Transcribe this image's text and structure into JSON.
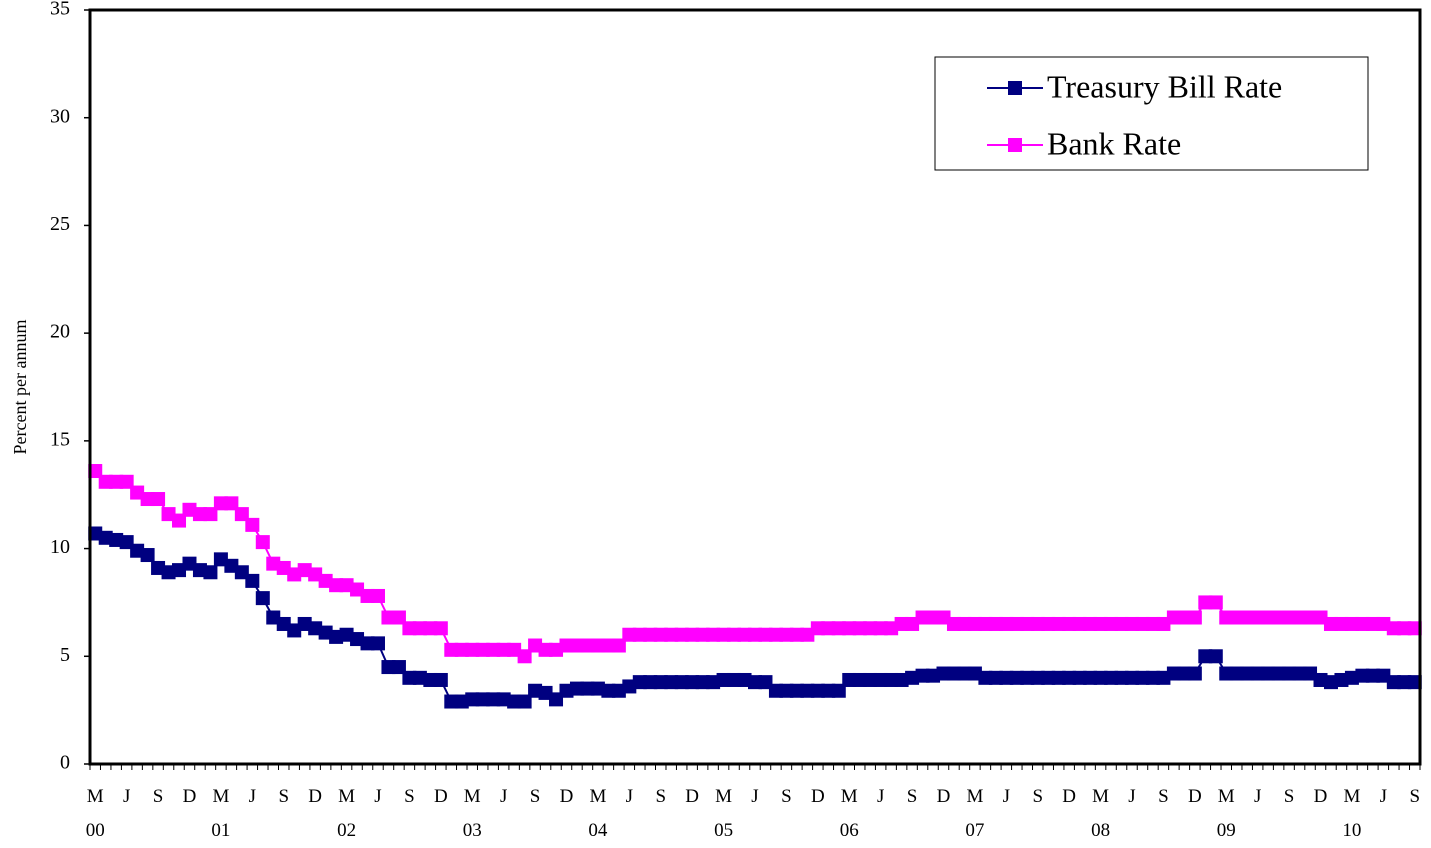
{
  "chart_data": {
    "type": "line",
    "y_label": "Percent per annum",
    "categories": [
      "M\n00",
      null,
      null,
      "J",
      null,
      null,
      "S",
      null,
      null,
      "D",
      null,
      null,
      "M\n01",
      null,
      null,
      "J",
      null,
      null,
      "S",
      null,
      null,
      "D",
      null,
      null,
      "M\n02",
      null,
      null,
      "J",
      null,
      null,
      "S",
      null,
      null,
      "D",
      null,
      null,
      "M\n03",
      null,
      null,
      "J",
      null,
      null,
      "S",
      null,
      null,
      "D",
      null,
      null,
      "M\n04",
      null,
      null,
      "J",
      null,
      null,
      "S",
      null,
      null,
      "D",
      null,
      null,
      "M\n05",
      null,
      null,
      "J",
      null,
      null,
      "S",
      null,
      null,
      "D",
      null,
      null,
      "M\n06",
      null,
      null,
      "J",
      null,
      null,
      "S",
      null,
      null,
      "D",
      null,
      null,
      "M\n07",
      null,
      null,
      "J",
      null,
      null,
      "S",
      null,
      null,
      "D",
      null,
      null,
      "M\n08",
      null,
      null,
      "J",
      null,
      null,
      "S",
      null,
      null,
      "D",
      null,
      null,
      "M\n09",
      null,
      null,
      "J",
      null,
      null,
      "S",
      null,
      null,
      "D",
      null,
      null,
      "M\n10",
      null,
      null,
      "J",
      null,
      null,
      "S"
    ],
    "series": [
      {
        "name": "Treasury Bill Rate",
        "color": "#000080",
        "values": [
          10.7,
          10.5,
          10.4,
          10.3,
          9.9,
          9.7,
          9.1,
          8.9,
          9.0,
          9.3,
          9.0,
          8.9,
          9.5,
          9.2,
          8.9,
          8.5,
          7.7,
          6.8,
          6.5,
          6.2,
          6.5,
          6.3,
          6.1,
          5.9,
          6.0,
          5.8,
          5.6,
          5.6,
          4.5,
          4.5,
          4.0,
          4.0,
          3.9,
          3.9,
          2.9,
          2.9,
          3.0,
          3.0,
          3.0,
          3.0,
          2.9,
          2.9,
          3.4,
          3.3,
          3.0,
          3.4,
          3.5,
          3.5,
          3.5,
          3.4,
          3.4,
          3.6,
          3.8,
          3.8,
          3.8,
          3.8,
          3.8,
          3.8,
          3.8,
          3.8,
          3.9,
          3.9,
          3.9,
          3.8,
          3.8,
          3.4,
          3.4,
          3.4,
          3.4,
          3.4,
          3.4,
          3.4,
          3.9,
          3.9,
          3.9,
          3.9,
          3.9,
          3.9,
          4.0,
          4.1,
          4.1,
          4.2,
          4.2,
          4.2,
          4.2,
          4.0,
          4.0,
          4.0,
          4.0,
          4.0,
          4.0,
          4.0,
          4.0,
          4.0,
          4.0,
          4.0,
          4.0,
          4.0,
          4.0,
          4.0,
          4.0,
          4.0,
          4.0,
          4.2,
          4.2,
          4.2,
          5.0,
          5.0,
          4.2,
          4.2,
          4.2,
          4.2,
          4.2,
          4.2,
          4.2,
          4.2,
          4.2,
          3.9,
          3.8,
          3.9,
          4.0,
          4.1,
          4.1,
          4.1,
          3.8,
          3.8,
          3.8
        ]
      },
      {
        "name": "Bank Rate",
        "color": "#ff00ff",
        "values": [
          13.6,
          13.1,
          13.1,
          13.1,
          12.6,
          12.3,
          12.3,
          11.6,
          11.3,
          11.8,
          11.6,
          11.6,
          12.1,
          12.1,
          11.6,
          11.1,
          10.3,
          9.3,
          9.1,
          8.8,
          9.0,
          8.8,
          8.5,
          8.3,
          8.3,
          8.1,
          7.8,
          7.8,
          6.8,
          6.8,
          6.3,
          6.3,
          6.3,
          6.3,
          5.3,
          5.3,
          5.3,
          5.3,
          5.3,
          5.3,
          5.3,
          5.0,
          5.5,
          5.3,
          5.3,
          5.5,
          5.5,
          5.5,
          5.5,
          5.5,
          5.5,
          6.0,
          6.0,
          6.0,
          6.0,
          6.0,
          6.0,
          6.0,
          6.0,
          6.0,
          6.0,
          6.0,
          6.0,
          6.0,
          6.0,
          6.0,
          6.0,
          6.0,
          6.0,
          6.3,
          6.3,
          6.3,
          6.3,
          6.3,
          6.3,
          6.3,
          6.3,
          6.5,
          6.5,
          6.8,
          6.8,
          6.8,
          6.5,
          6.5,
          6.5,
          6.5,
          6.5,
          6.5,
          6.5,
          6.5,
          6.5,
          6.5,
          6.5,
          6.5,
          6.5,
          6.5,
          6.5,
          6.5,
          6.5,
          6.5,
          6.5,
          6.5,
          6.5,
          6.8,
          6.8,
          6.8,
          7.5,
          7.5,
          6.8,
          6.8,
          6.8,
          6.8,
          6.8,
          6.8,
          6.8,
          6.8,
          6.8,
          6.8,
          6.5,
          6.5,
          6.5,
          6.5,
          6.5,
          6.5,
          6.3,
          6.3,
          6.3
        ]
      }
    ],
    "ylim": [
      0,
      35
    ],
    "yticks": [
      0,
      5,
      10,
      15,
      20,
      25,
      30,
      35
    ],
    "grid": false,
    "legend": "upper right"
  }
}
